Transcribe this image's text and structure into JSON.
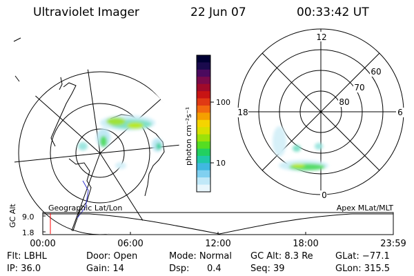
{
  "header": {
    "instrument": "Ultraviolet Imager",
    "date": "22 Jun 07",
    "time": "00:33:42 UT"
  },
  "left_panel": {
    "label": "Geographic Lat/Lon"
  },
  "right_panel": {
    "label": "Apex MLat/MLT",
    "mlt_labels": [
      "12",
      "18",
      "6",
      "0"
    ],
    "mlat_labels": [
      "60",
      "70",
      "80"
    ]
  },
  "colorbar": {
    "unit_label": "photon cm⁻²s⁻¹",
    "ticks": [
      "100",
      "10"
    ],
    "colors": [
      "#000033",
      "#1a0a4d",
      "#4b0a5e",
      "#7a0a4a",
      "#a00a2a",
      "#c81414",
      "#e03a14",
      "#f26a0f",
      "#f5a000",
      "#f5d400",
      "#d8e000",
      "#9ce10a",
      "#55dd22",
      "#22d060",
      "#20c8a8",
      "#40b8e0",
      "#80d0f0",
      "#c0e8f8",
      "#e8f6fc"
    ]
  },
  "timeline": {
    "axis_label": "GC Alt",
    "y_ticks": [
      "9.0",
      "1.8"
    ],
    "x_ticks": [
      "00:00",
      "06:00",
      "12:00",
      "18:00",
      "23:59"
    ]
  },
  "footer": {
    "flt": "Flt: LBHL",
    "ip": "IP: 36.0",
    "door": "Door: Open",
    "gain": "Gain: 14",
    "mode": "Mode: Normal",
    "dsp_label": "Dsp:",
    "dsp_value": "0.4",
    "gc_alt": "GC Alt: 8.3 Re",
    "seq": "Seq: 39",
    "glat": "GLat: −77.1",
    "glon": "GLon: 315.5"
  }
}
